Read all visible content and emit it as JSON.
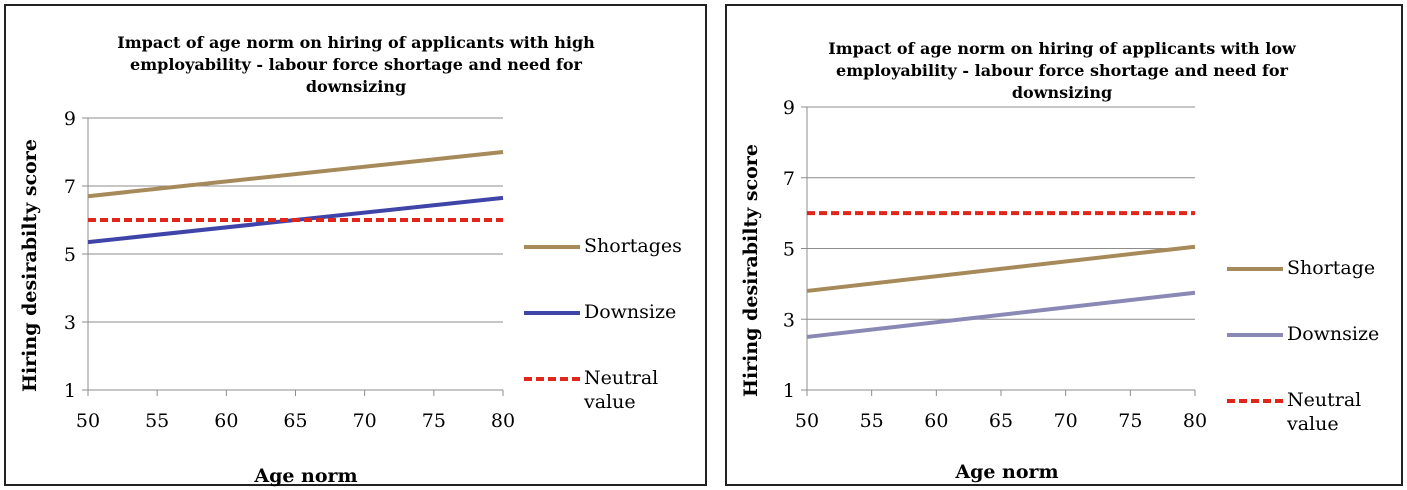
{
  "chart_data": [
    {
      "type": "line",
      "title": "Impact of age norm on hiring of applicants with high employability - labour force shortage and need for downsizing",
      "xlabel": "Age norm",
      "ylabel": "Hiring desirabilty score",
      "x": [
        50,
        80
      ],
      "x_ticks": [
        50,
        55,
        60,
        65,
        70,
        75,
        80
      ],
      "y_ticks": [
        1,
        3,
        5,
        7,
        9
      ],
      "xlim": [
        50,
        80
      ],
      "ylim": [
        1,
        9
      ],
      "grid": "horizontal",
      "legend_position": "right",
      "series": [
        {
          "name": "Shortages",
          "values": [
            6.7,
            8.0
          ],
          "color": "#A68A5A",
          "style": "solid"
        },
        {
          "name": "Downsize",
          "values": [
            5.35,
            6.65
          ],
          "color": "#3F44A8",
          "style": "solid"
        },
        {
          "name": "Neutral value",
          "values": [
            6.0,
            6.0
          ],
          "color": "#E0261B",
          "style": "dashed"
        }
      ]
    },
    {
      "type": "line",
      "title": "Impact of age norm on hiring of applicants with low employability - labour force shortage and need for downsizing",
      "xlabel": "Age norm",
      "ylabel": "Hiring desirabilty score",
      "x": [
        50,
        80
      ],
      "x_ticks": [
        50,
        55,
        60,
        65,
        70,
        75,
        80
      ],
      "y_ticks": [
        1,
        3,
        5,
        7,
        9
      ],
      "xlim": [
        50,
        80
      ],
      "ylim": [
        1,
        9
      ],
      "grid": "horizontal",
      "legend_position": "right",
      "series": [
        {
          "name": "Shortage",
          "values": [
            3.8,
            5.05
          ],
          "color": "#A68A5A",
          "style": "solid"
        },
        {
          "name": "Downsize",
          "values": [
            2.5,
            3.75
          ],
          "color": "#8A88B4",
          "style": "solid"
        },
        {
          "name": "Neutral value",
          "values": [
            6.0,
            6.0
          ],
          "color": "#E0261B",
          "style": "dashed"
        }
      ]
    }
  ]
}
